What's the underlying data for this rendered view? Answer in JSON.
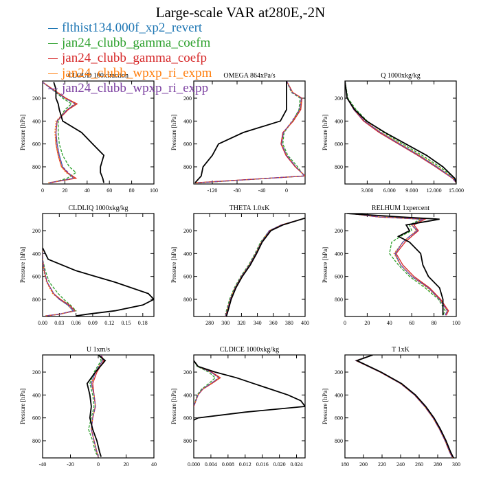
{
  "title": "Large-scale VAR at280E,-2N",
  "legend": [
    {
      "name": "flthist134.000f_xp2_revert",
      "color": "#1f77b4"
    },
    {
      "name": "jan24_clubb_gamma_coefm",
      "color": "#2ca02c"
    },
    {
      "name": "jan24_clubb_gamma_coefp",
      "color": "#d62728"
    },
    {
      "name": "jan24_clubb_wpxp_ri_expm",
      "color": "#ff7f0e"
    },
    {
      "name": "jan24_clubb_wpxp_ri_expp",
      "color": "#7b3fa0"
    }
  ],
  "chart_data": [
    {
      "type": "line",
      "title": "CLOUD 100xfraction",
      "ylabel": "Pressure [hPa]",
      "xlim": [
        0,
        100
      ],
      "ylim": [
        950,
        50
      ],
      "xticks": [
        0,
        20,
        40,
        60,
        80,
        100
      ],
      "xtick_labels": [
        "0",
        "20",
        "40",
        "60",
        "80",
        "100"
      ],
      "yticks": [
        200,
        400,
        600,
        800
      ],
      "y": [
        60,
        120,
        200,
        250,
        300,
        400,
        500,
        600,
        700,
        800,
        850,
        900,
        940
      ],
      "series": [
        {
          "x": [
            0,
            8,
            20,
            30,
            22,
            13,
            12,
            13,
            15,
            18,
            22,
            28,
            6
          ]
        },
        {
          "x": [
            0,
            8,
            18,
            26,
            20,
            14,
            14,
            15,
            18,
            24,
            30,
            22,
            8
          ]
        },
        {
          "x": [
            0,
            9,
            21,
            31,
            23,
            13,
            12,
            12,
            14,
            17,
            22,
            30,
            6
          ]
        },
        {
          "x": [
            0,
            9,
            20,
            30,
            22,
            12,
            11,
            12,
            14,
            17,
            21,
            29,
            5
          ]
        },
        {
          "x": [
            0,
            8,
            20,
            29,
            22,
            13,
            12,
            13,
            15,
            18,
            23,
            28,
            6
          ]
        },
        {
          "x": [
            10,
            12,
            12,
            14,
            15,
            18,
            35,
            45,
            55,
            52,
            52,
            54,
            55
          ]
        }
      ]
    },
    {
      "type": "line",
      "title": "OMEGA 864xPa/s",
      "ylabel": "Pressure [hPa]",
      "xlim": [
        -150,
        30
      ],
      "ylim": [
        950,
        50
      ],
      "xticks": [
        -120,
        -80,
        -40,
        0
      ],
      "xtick_labels": [
        "-120",
        "-80",
        "-40",
        "0"
      ],
      "yticks": [
        200,
        400,
        600,
        800
      ],
      "y": [
        50,
        150,
        200,
        300,
        400,
        500,
        600,
        700,
        800,
        880,
        940
      ],
      "series": [
        {
          "x": [
            0,
            10,
            24,
            22,
            10,
            -5,
            -8,
            0,
            15,
            30,
            -145
          ]
        },
        {
          "x": [
            0,
            8,
            22,
            20,
            10,
            -4,
            -6,
            2,
            18,
            28,
            -140
          ]
        },
        {
          "x": [
            0,
            10,
            25,
            23,
            11,
            -6,
            -9,
            -1,
            14,
            30,
            -148
          ]
        },
        {
          "x": [
            0,
            10,
            24,
            22,
            10,
            -5,
            -8,
            0,
            15,
            30,
            -145
          ]
        },
        {
          "x": [
            0,
            9,
            24,
            21,
            9,
            -5,
            -8,
            0,
            15,
            29,
            -144
          ]
        },
        {
          "x": [
            0,
            0,
            0,
            0,
            -10,
            -70,
            -110,
            -120,
            -135,
            -138,
            -148
          ]
        }
      ]
    },
    {
      "type": "line",
      "title": "Q 1000xkg/kg",
      "ylabel": "Pressure [hPa]",
      "xlim": [
        0,
        15
      ],
      "ylim": [
        950,
        50
      ],
      "xticks": [
        3,
        6,
        9,
        12,
        15
      ],
      "xtick_labels": [
        "3.000",
        "6.000",
        "9.000",
        "12.000",
        "15.000"
      ],
      "yticks": [
        200,
        400,
        600,
        800
      ],
      "y": [
        50,
        200,
        300,
        400,
        500,
        600,
        700,
        800,
        900,
        940
      ],
      "series": [
        {
          "x": [
            0,
            0.3,
            1.2,
            2.6,
            4.8,
            7.4,
            10.0,
            12.4,
            14.6,
            15.0
          ]
        },
        {
          "x": [
            0,
            0.4,
            1.5,
            3.0,
            5.2,
            7.8,
            10.4,
            12.8,
            14.8,
            15.0
          ]
        },
        {
          "x": [
            0,
            0.3,
            1.2,
            2.5,
            4.6,
            7.2,
            9.8,
            12.2,
            14.5,
            15.0
          ]
        },
        {
          "x": [
            0,
            0.3,
            1.3,
            2.7,
            4.9,
            7.5,
            10.1,
            12.5,
            14.6,
            15.0
          ]
        },
        {
          "x": [
            0,
            0.3,
            1.2,
            2.6,
            4.8,
            7.3,
            9.9,
            12.3,
            14.5,
            15.0
          ]
        },
        {
          "x": [
            0,
            0.3,
            1.3,
            2.9,
            5.4,
            8.2,
            11.0,
            13.2,
            14.8,
            15.0
          ]
        }
      ]
    },
    {
      "type": "line",
      "title": "CLDLIQ 1000xkg/kg",
      "ylabel": "Pressure [hPa]",
      "xlim": [
        0,
        0.2
      ],
      "ylim": [
        950,
        50
      ],
      "xticks": [
        0,
        0.03,
        0.06,
        0.09,
        0.12,
        0.15,
        0.18
      ],
      "xtick_labels": [
        "0.00",
        "0.03",
        "0.06",
        "0.09",
        "0.12",
        "0.15",
        "0.18"
      ],
      "yticks": [
        200,
        400,
        600,
        800
      ],
      "y": [
        350,
        450,
        550,
        650,
        750,
        800,
        850,
        900,
        930,
        945
      ],
      "series": [
        {
          "x": [
            0,
            0,
            0.003,
            0.008,
            0.02,
            0.03,
            0.045,
            0.055,
            0.03,
            0.005
          ]
        },
        {
          "x": [
            0,
            0,
            0.005,
            0.012,
            0.028,
            0.038,
            0.05,
            0.06,
            0.03,
            0.005
          ]
        },
        {
          "x": [
            0,
            0,
            0.003,
            0.008,
            0.02,
            0.032,
            0.048,
            0.058,
            0.03,
            0.005
          ]
        },
        {
          "x": [
            0,
            0,
            0.002,
            0.007,
            0.018,
            0.03,
            0.045,
            0.056,
            0.03,
            0.005
          ]
        },
        {
          "x": [
            0,
            0,
            0.003,
            0.008,
            0.02,
            0.03,
            0.046,
            0.056,
            0.03,
            0.005
          ]
        },
        {
          "x": [
            0,
            0.01,
            0.06,
            0.13,
            0.19,
            0.2,
            0.18,
            0.13,
            0.08,
            0.06
          ]
        }
      ]
    },
    {
      "type": "line",
      "title": "THETA 1.0xK",
      "ylabel": "Pressure [hPa]",
      "xlim": [
        260,
        400
      ],
      "ylim": [
        950,
        50
      ],
      "xticks": [
        280,
        300,
        320,
        340,
        360,
        380,
        400
      ],
      "xtick_labels": [
        "280",
        "300",
        "320",
        "340",
        "360",
        "380",
        "400"
      ],
      "yticks": [
        200,
        400,
        600,
        800
      ],
      "y": [
        90,
        150,
        200,
        300,
        400,
        500,
        600,
        700,
        800,
        900,
        950
      ],
      "series": [
        {
          "x": [
            400,
            370,
            355,
            345,
            338,
            330,
            320,
            312,
            306,
            302,
            300
          ]
        },
        {
          "x": [
            400,
            370,
            355,
            344,
            337,
            329,
            319,
            311,
            305,
            301,
            300
          ]
        },
        {
          "x": [
            400,
            370,
            356,
            345,
            338,
            330,
            320,
            312,
            306,
            302,
            300
          ]
        },
        {
          "x": [
            400,
            370,
            355,
            345,
            338,
            330,
            320,
            312,
            306,
            302,
            300
          ]
        },
        {
          "x": [
            400,
            370,
            355,
            345,
            338,
            330,
            320,
            312,
            306,
            302,
            300
          ]
        },
        {
          "x": [
            400,
            372,
            357,
            346,
            339,
            331,
            321,
            313,
            307,
            303,
            301
          ]
        }
      ]
    },
    {
      "type": "line",
      "title": "RELHUM 1xpercent",
      "ylabel": "Pressure [hPa]",
      "xlim": [
        0,
        100
      ],
      "ylim": [
        950,
        50
      ],
      "xticks": [
        0,
        20,
        40,
        60,
        80,
        100
      ],
      "xtick_labels": [
        "0",
        "20",
        "40",
        "60",
        "80",
        "100"
      ],
      "yticks": [
        200,
        400,
        600,
        800
      ],
      "y": [
        50,
        80,
        100,
        150,
        200,
        250,
        300,
        400,
        500,
        600,
        700,
        800,
        900,
        940
      ],
      "series": [
        {
          "x": [
            5,
            30,
            70,
            60,
            65,
            58,
            52,
            45,
            50,
            60,
            75,
            85,
            92,
            90
          ]
        },
        {
          "x": [
            5,
            30,
            68,
            58,
            60,
            50,
            42,
            40,
            48,
            58,
            72,
            84,
            90,
            88
          ]
        },
        {
          "x": [
            5,
            30,
            72,
            62,
            66,
            60,
            54,
            46,
            52,
            62,
            76,
            86,
            93,
            91
          ]
        },
        {
          "x": [
            5,
            30,
            70,
            60,
            64,
            58,
            52,
            44,
            50,
            60,
            74,
            85,
            92,
            90
          ]
        },
        {
          "x": [
            5,
            30,
            70,
            60,
            65,
            58,
            52,
            45,
            50,
            60,
            75,
            85,
            92,
            90
          ]
        },
        {
          "x": [
            2,
            50,
            85,
            55,
            58,
            48,
            58,
            68,
            70,
            75,
            85,
            88,
            88,
            88
          ]
        }
      ]
    },
    {
      "type": "line",
      "title": "U 1xm/s",
      "ylabel": "Pressure [hPa]",
      "xlim": [
        -40,
        40
      ],
      "ylim": [
        950,
        50
      ],
      "xticks": [
        -40,
        -20,
        0,
        20,
        40
      ],
      "xtick_labels": [
        "-40",
        "-20",
        "0",
        "20",
        "40"
      ],
      "yticks": [
        200,
        400,
        600,
        800
      ],
      "y": [
        50,
        100,
        200,
        300,
        400,
        500,
        600,
        700,
        800,
        900,
        940
      ],
      "series": [
        {
          "x": [
            2,
            3,
            -2,
            -5,
            -3,
            -2,
            -4,
            -5,
            -3,
            -1,
            0
          ]
        },
        {
          "x": [
            1,
            2,
            -3,
            -6,
            -4,
            -3,
            -5,
            -7,
            -4,
            -2,
            0
          ]
        },
        {
          "x": [
            2,
            4,
            -1,
            -4,
            -3,
            -2,
            -4,
            -5,
            -3,
            -1,
            0
          ]
        },
        {
          "x": [
            2,
            3,
            -2,
            -5,
            -3,
            -2,
            -4,
            -5,
            -3,
            -1,
            0
          ]
        },
        {
          "x": [
            2,
            3,
            -2,
            -5,
            -3,
            -2,
            -4,
            -5,
            -3,
            -1,
            0
          ]
        },
        {
          "x": [
            0,
            5,
            -2,
            -8,
            -6,
            -5,
            -6,
            -4,
            -1,
            1,
            2
          ]
        }
      ]
    },
    {
      "type": "line",
      "title": "CLDICE 1000xkg/kg",
      "ylabel": "Pressure [hPa]",
      "xlim": [
        0,
        0.026
      ],
      "ylim": [
        950,
        50
      ],
      "xticks": [
        0,
        0.004,
        0.008,
        0.012,
        0.016,
        0.02,
        0.024
      ],
      "xtick_labels": [
        "0.000",
        "0.004",
        "0.008",
        "0.012",
        "0.016",
        "0.020",
        "0.024"
      ],
      "yticks": [
        200,
        400,
        600,
        800
      ],
      "y": [
        100,
        150,
        200,
        250,
        300,
        350,
        400,
        450,
        500
      ],
      "series": [
        {
          "x": [
            0,
            0.001,
            0.004,
            0.006,
            0.004,
            0.002,
            0.001,
            0.0005,
            0
          ]
        },
        {
          "x": [
            0,
            0.0008,
            0.0035,
            0.005,
            0.0035,
            0.0018,
            0.0008,
            0.0004,
            0
          ]
        },
        {
          "x": [
            0,
            0.001,
            0.0042,
            0.0062,
            0.0042,
            0.0021,
            0.001,
            0.0005,
            0
          ]
        },
        {
          "x": [
            0,
            0.001,
            0.004,
            0.006,
            0.004,
            0.002,
            0.001,
            0.0005,
            0
          ]
        },
        {
          "x": [
            0,
            0.001,
            0.004,
            0.0058,
            0.004,
            0.002,
            0.001,
            0.0005,
            0
          ]
        },
        {
          "x": [
            0,
            0.001,
            0.005,
            0.01,
            0.014,
            0.018,
            0.022,
            0.025,
            0.026
          ]
        }
      ],
      "black_tail_y": [
        500,
        550,
        600,
        620
      ],
      "black_tail_x": [
        0.026,
        0.012,
        0.001,
        0
      ]
    },
    {
      "type": "line",
      "title": "T 1xK",
      "ylabel": "Pressure [hPa]",
      "xlim": [
        180,
        300
      ],
      "ylim": [
        950,
        50
      ],
      "xticks": [
        180,
        200,
        220,
        240,
        260,
        280,
        300
      ],
      "xtick_labels": [
        "180",
        "200",
        "220",
        "240",
        "260",
        "280",
        "300"
      ],
      "yticks": [
        200,
        400,
        600,
        800
      ],
      "y": [
        50,
        100,
        150,
        200,
        300,
        400,
        500,
        600,
        700,
        800,
        900,
        950
      ],
      "series": [
        {
          "x": [
            210,
            192,
            205,
            218,
            240,
            255,
            266,
            275,
            282,
            288,
            293,
            296
          ]
        },
        {
          "x": [
            210,
            192,
            205,
            218,
            240,
            255,
            266,
            275,
            282,
            288,
            293,
            296
          ]
        },
        {
          "x": [
            210,
            192,
            205,
            218,
            240,
            255,
            266,
            275,
            282,
            288,
            293,
            296
          ]
        },
        {
          "x": [
            210,
            192,
            205,
            218,
            240,
            255,
            266,
            275,
            282,
            288,
            293,
            296
          ]
        },
        {
          "x": [
            210,
            192,
            205,
            218,
            240,
            255,
            266,
            275,
            282,
            288,
            293,
            296
          ]
        },
        {
          "x": [
            210,
            193,
            206,
            219,
            241,
            256,
            267,
            276,
            283,
            289,
            294,
            297
          ]
        }
      ]
    }
  ],
  "series_colors": [
    "#1f77b4",
    "#2ca02c",
    "#d62728",
    "#ff7f0e",
    "#7b3fa0",
    "#000000"
  ]
}
